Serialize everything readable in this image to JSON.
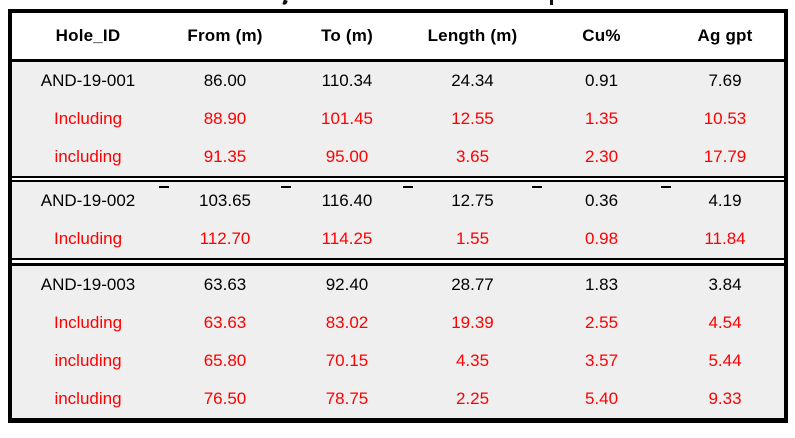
{
  "colors": {
    "highlight_text": "#FF0000",
    "text": "#000000",
    "border": "#000000",
    "body_background": "#EFEFEF",
    "header_background": "#FFFFFF"
  },
  "table": {
    "headers": [
      "Hole_ID",
      "From (m)",
      "To (m)",
      "Length (m)",
      "Cu%",
      "Ag gpt"
    ],
    "groups": [
      {
        "rows": [
          {
            "highlight": false,
            "cells": [
              "AND-19-001",
              "86.00",
              "110.34",
              "24.34",
              "0.91",
              "7.69"
            ]
          },
          {
            "highlight": true,
            "cells": [
              "Including",
              "88.90",
              "101.45",
              "12.55",
              "1.35",
              "10.53"
            ]
          },
          {
            "highlight": true,
            "cells": [
              "including",
              "91.35",
              "95.00",
              "3.65",
              "2.30",
              "17.79"
            ]
          }
        ]
      },
      {
        "rows": [
          {
            "highlight": false,
            "cells": [
              "AND-19-002",
              "103.65",
              "116.40",
              "12.75",
              "0.36",
              "4.19"
            ]
          },
          {
            "highlight": true,
            "cells": [
              "Including",
              "112.70",
              "114.25",
              "1.55",
              "0.98",
              "11.84"
            ]
          }
        ]
      },
      {
        "rows": [
          {
            "highlight": false,
            "cells": [
              "AND-19-003",
              "63.63",
              "92.40",
              "28.77",
              "1.83",
              "3.84"
            ]
          },
          {
            "highlight": true,
            "cells": [
              "Including",
              "63.63",
              "83.02",
              "19.39",
              "2.55",
              "4.54"
            ]
          },
          {
            "highlight": true,
            "cells": [
              "including",
              "65.80",
              "70.15",
              "4.35",
              "3.57",
              "5.44"
            ]
          },
          {
            "highlight": true,
            "cells": [
              "including",
              "76.50",
              "78.75",
              "2.25",
              "5.40",
              "9.33"
            ]
          }
        ]
      }
    ]
  }
}
